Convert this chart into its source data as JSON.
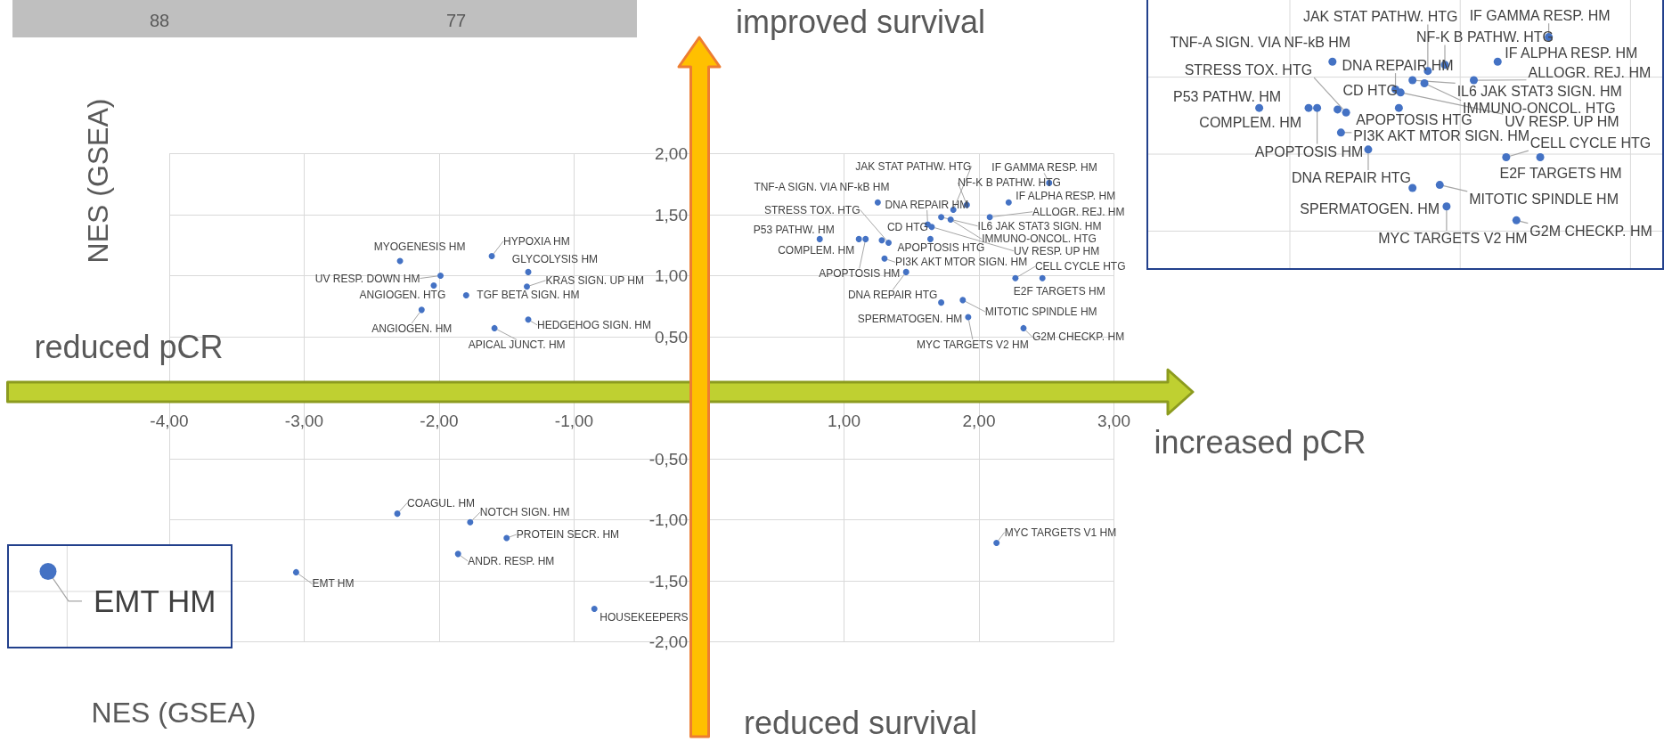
{
  "chart_data": {
    "type": "scatter",
    "xlabel": "NES (GSEA)",
    "ylabel": "NES (GSEA)",
    "annotations": [
      "improved survival",
      "reduced survival",
      "reduced pCR",
      "increased pCR",
      "88",
      "77"
    ],
    "x": [
      -2.29,
      -1.61,
      -1.34,
      -1.99,
      -2.04,
      -1.35,
      -1.8,
      -2.13,
      -1.34,
      -1.59,
      1.25,
      1.81,
      2.52,
      1.91,
      2.22,
      1.62,
      1.33,
      2.08,
      0.82,
      1.28,
      1.72,
      1.79,
      1.11,
      1.64,
      1.65,
      1.3,
      2.27,
      1.16,
      2.47,
      1.46,
      1.88,
      1.72,
      1.92,
      2.33,
      -2.31,
      -1.77,
      -1.5,
      -1.86,
      -3.06,
      -0.85,
      2.13
    ],
    "values": [
      1.12,
      1.16,
      1.03,
      1.0,
      0.92,
      0.91,
      0.84,
      0.72,
      0.64,
      0.57,
      1.6,
      1.54,
      1.76,
      1.58,
      1.6,
      1.42,
      1.27,
      1.48,
      1.3,
      1.29,
      1.48,
      1.46,
      1.3,
      1.3,
      1.4,
      1.14,
      0.98,
      1.3,
      0.98,
      1.03,
      0.8,
      0.78,
      0.66,
      0.57,
      -0.95,
      -1.02,
      -1.15,
      -1.28,
      -1.43,
      -1.73,
      -1.19
    ],
    "value_labels": [
      "MYOGENESIS HM",
      "HYPOXIA HM",
      "GLYCOLYSIS HM",
      "UV RESP. DOWN HM",
      "ANGIOGEN. HTG",
      "KRAS SIGN. UP HM",
      "TGF BETA SIGN. HM",
      "ANGIOGEN. HM",
      "HEDGEHOG SIGN. HM",
      "APICAL JUNCT. HM",
      "TNF-A SIGN. VIA NF-kB HM",
      "JAK STAT PATHW. HTG",
      "IF GAMMA RESP. HM",
      "NF-K B PATHW. HTG",
      "IF ALPHA RESP. HM",
      "DNA REPAIR HM",
      "STRESS TOX. HTG",
      "ALLOGR. REJ. HM",
      "P53 PATHW. HM",
      "CD HTG",
      "IL6 JAK STAT3 SIGN. HM",
      "IMMUNO-ONCOL. HTG",
      "COMPLEM. HM",
      "APOPTOSIS HTG",
      "UV RESP. UP HM",
      "PI3K AKT MTOR SIGN. HM",
      "CELL CYCLE HTG",
      "APOPTOSIS HM",
      "E2F TARGETS HM",
      "DNA REPAIR HTG",
      "MITOTIC SPINDLE HM",
      "SPERMATOGEN. HM",
      "MYC TARGETS V2 HM",
      "G2M CHECKP. HM",
      "COAGUL. HM",
      "NOTCH SIGN. HM",
      "PROTEIN SECR. HM",
      "ANDR. RESP. HM",
      "EMT HM",
      "HOUSEKEEPERS",
      "MYC TARGETS V1 HM"
    ],
    "color": "#4472c4",
    "marker": "circle",
    "xlim": [
      -4,
      3
    ],
    "ylim": [
      -2,
      2
    ],
    "xticks": [
      {
        "value": -4,
        "label": "-4,00"
      },
      {
        "value": -3,
        "label": "-3,00"
      },
      {
        "value": -2,
        "label": "-2,00"
      },
      {
        "value": -1,
        "label": "-1,00"
      },
      {
        "value": 1,
        "label": "1,00"
      },
      {
        "value": 2,
        "label": "2,00"
      },
      {
        "value": 3,
        "label": "3,00"
      }
    ],
    "yticks": [
      {
        "value": -2,
        "label": "-2,00"
      },
      {
        "value": -1.5,
        "label": "-1,50"
      },
      {
        "value": -1,
        "label": "-1,00"
      },
      {
        "value": -0.5,
        "label": "-0,50"
      },
      {
        "value": 0.5,
        "label": "0,50"
      },
      {
        "value": 1,
        "label": "1,00"
      },
      {
        "value": 1.5,
        "label": "1,50"
      },
      {
        "value": 2,
        "label": "2,00"
      }
    ],
    "grid": true
  }
}
